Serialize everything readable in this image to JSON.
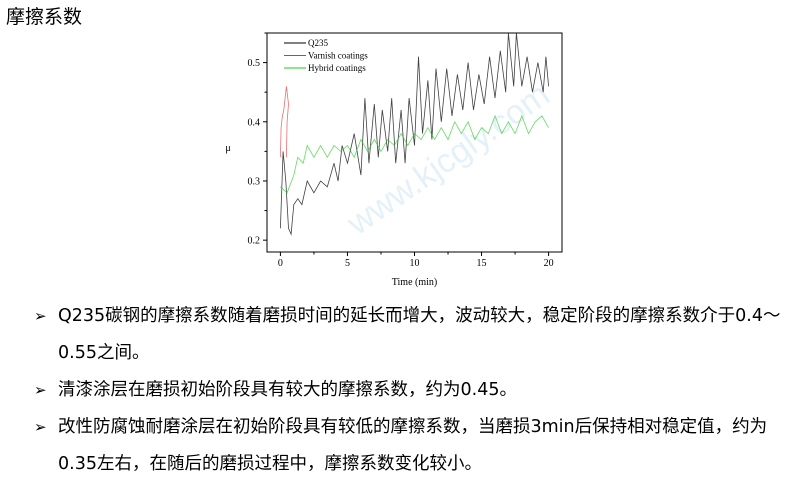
{
  "page": {
    "title": "摩擦系数",
    "watermark": "www.kjcgly.com",
    "bullets": [
      {
        "text": "Q235碳钢的摩擦系数随着磨损时间的延长而增大，波动较大，稳定阶段的摩擦系数介于0.4～0.55之间。"
      },
      {
        "text": "清漆涂层在磨损初始阶段具有较大的摩擦系数，约为0.45。"
      },
      {
        "text": "改性防腐蚀耐磨涂层在初始阶段具有较低的摩擦系数，当磨损3min后保持相对稳定值，约为0.35左右，在随后的磨损过程中，摩擦系数变化较小。"
      }
    ],
    "bullet_icon": "arrowhead-bullet-icon"
  },
  "chart_data": {
    "type": "line",
    "title": "",
    "xlabel": "Time (min)",
    "ylabel": "μ",
    "xlim": [
      -1,
      21
    ],
    "ylim": [
      0.18,
      0.55
    ],
    "xticks": [
      0,
      5,
      10,
      15,
      20
    ],
    "yticks": [
      0.2,
      0.3,
      0.4,
      0.5
    ],
    "xtick_labels": [
      "0",
      "5",
      "10",
      "15",
      "20"
    ],
    "ytick_labels": [
      "0.2",
      "0.3",
      "0.4",
      "0.5"
    ],
    "grid": false,
    "legend_position": "top-left",
    "series": [
      {
        "name": "Q235",
        "color": "#000000",
        "points": [
          [
            0,
            0.22
          ],
          [
            0.2,
            0.35
          ],
          [
            0.4,
            0.3
          ],
          [
            0.6,
            0.22
          ],
          [
            0.8,
            0.21
          ],
          [
            1,
            0.26
          ],
          [
            1.3,
            0.27
          ],
          [
            1.6,
            0.26
          ],
          [
            2,
            0.3
          ],
          [
            2.5,
            0.28
          ],
          [
            3,
            0.3
          ],
          [
            3.5,
            0.29
          ],
          [
            4,
            0.33
          ],
          [
            4.3,
            0.3
          ],
          [
            4.6,
            0.36
          ],
          [
            5,
            0.33
          ],
          [
            5.5,
            0.38
          ],
          [
            6,
            0.31
          ],
          [
            6.3,
            0.44
          ],
          [
            6.6,
            0.33
          ],
          [
            7,
            0.43
          ],
          [
            7.3,
            0.34
          ],
          [
            7.6,
            0.42
          ],
          [
            8,
            0.35
          ],
          [
            8.3,
            0.44
          ],
          [
            8.6,
            0.33
          ],
          [
            9,
            0.42
          ],
          [
            9.3,
            0.33
          ],
          [
            9.6,
            0.44
          ],
          [
            10,
            0.36
          ],
          [
            10.3,
            0.51
          ],
          [
            10.6,
            0.38
          ],
          [
            11,
            0.47
          ],
          [
            11.3,
            0.37
          ],
          [
            11.6,
            0.49
          ],
          [
            12,
            0.4
          ],
          [
            12.4,
            0.49
          ],
          [
            12.8,
            0.41
          ],
          [
            13.2,
            0.48
          ],
          [
            13.6,
            0.42
          ],
          [
            14,
            0.5
          ],
          [
            14.4,
            0.42
          ],
          [
            14.8,
            0.48
          ],
          [
            15.2,
            0.43
          ],
          [
            15.6,
            0.51
          ],
          [
            16,
            0.44
          ],
          [
            16.4,
            0.52
          ],
          [
            16.8,
            0.45
          ],
          [
            17,
            0.55
          ],
          [
            17.4,
            0.46
          ],
          [
            17.6,
            0.55
          ],
          [
            18,
            0.46
          ],
          [
            18.4,
            0.51
          ],
          [
            18.8,
            0.45
          ],
          [
            19.2,
            0.5
          ],
          [
            19.6,
            0.45
          ],
          [
            19.8,
            0.51
          ],
          [
            20,
            0.46
          ]
        ]
      },
      {
        "name": "Varnish coatings",
        "color": "#e83030",
        "points": [
          [
            0,
            0.34
          ],
          [
            0.05,
            0.39
          ],
          [
            0.15,
            0.41
          ],
          [
            0.25,
            0.42
          ],
          [
            0.35,
            0.44
          ],
          [
            0.45,
            0.46
          ],
          [
            0.55,
            0.44
          ],
          [
            0.6,
            0.43
          ],
          [
            0.5,
            0.4
          ],
          [
            0.45,
            0.34
          ]
        ]
      },
      {
        "name": "Hybrid coatings",
        "color": "#22cc22",
        "points": [
          [
            0,
            0.29
          ],
          [
            0.5,
            0.28
          ],
          [
            1,
            0.31
          ],
          [
            1.3,
            0.34
          ],
          [
            1.7,
            0.33
          ],
          [
            2,
            0.36
          ],
          [
            2.5,
            0.34
          ],
          [
            3,
            0.36
          ],
          [
            3.5,
            0.34
          ],
          [
            4,
            0.36
          ],
          [
            4.5,
            0.35
          ],
          [
            5,
            0.36
          ],
          [
            5.5,
            0.34
          ],
          [
            6,
            0.37
          ],
          [
            6.5,
            0.35
          ],
          [
            7,
            0.37
          ],
          [
            7.5,
            0.35
          ],
          [
            8,
            0.37
          ],
          [
            8.5,
            0.36
          ],
          [
            9,
            0.38
          ],
          [
            9.5,
            0.36
          ],
          [
            10,
            0.38
          ],
          [
            10.5,
            0.37
          ],
          [
            11,
            0.39
          ],
          [
            11.5,
            0.37
          ],
          [
            12,
            0.39
          ],
          [
            12.5,
            0.37
          ],
          [
            13,
            0.4
          ],
          [
            13.5,
            0.38
          ],
          [
            14,
            0.4
          ],
          [
            14.5,
            0.37
          ],
          [
            15,
            0.39
          ],
          [
            15.5,
            0.38
          ],
          [
            16,
            0.41
          ],
          [
            16.5,
            0.38
          ],
          [
            17,
            0.4
          ],
          [
            17.5,
            0.38
          ],
          [
            18,
            0.41
          ],
          [
            18.5,
            0.38
          ],
          [
            19,
            0.4
          ],
          [
            19.5,
            0.41
          ],
          [
            20,
            0.39
          ]
        ]
      }
    ]
  }
}
